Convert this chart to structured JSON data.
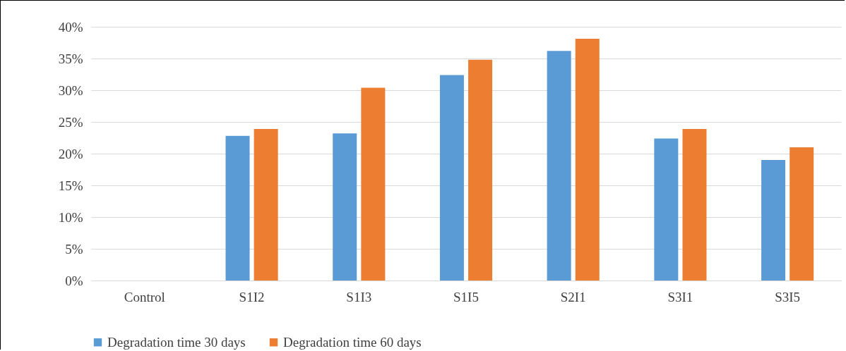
{
  "chart_data": {
    "type": "bar",
    "categories": [
      "Control",
      "S1I2",
      "S1I3",
      "S1I5",
      "S2I1",
      "S3I1",
      "S3I5"
    ],
    "series": [
      {
        "name": "Degradation time 30 days",
        "color": "#5b9bd5",
        "values": [
          0,
          22.8,
          23.2,
          32.4,
          36.2,
          22.4,
          19.0
        ]
      },
      {
        "name": "Degradation time 60 days",
        "color": "#ed7d31",
        "values": [
          0,
          23.9,
          30.4,
          34.8,
          38.1,
          23.9,
          21.0
        ]
      }
    ],
    "ylim": [
      0,
      40
    ],
    "yticks": [
      {
        "value": 0,
        "label": "0%"
      },
      {
        "value": 5,
        "label": "5%"
      },
      {
        "value": 10,
        "label": "10%"
      },
      {
        "value": 15,
        "label": "15%"
      },
      {
        "value": 20,
        "label": "20%"
      },
      {
        "value": 25,
        "label": "25%"
      },
      {
        "value": 30,
        "label": "30%"
      },
      {
        "value": 35,
        "label": "35%"
      },
      {
        "value": 40,
        "label": "40%"
      }
    ],
    "grid": "y",
    "legend": "bottom"
  }
}
